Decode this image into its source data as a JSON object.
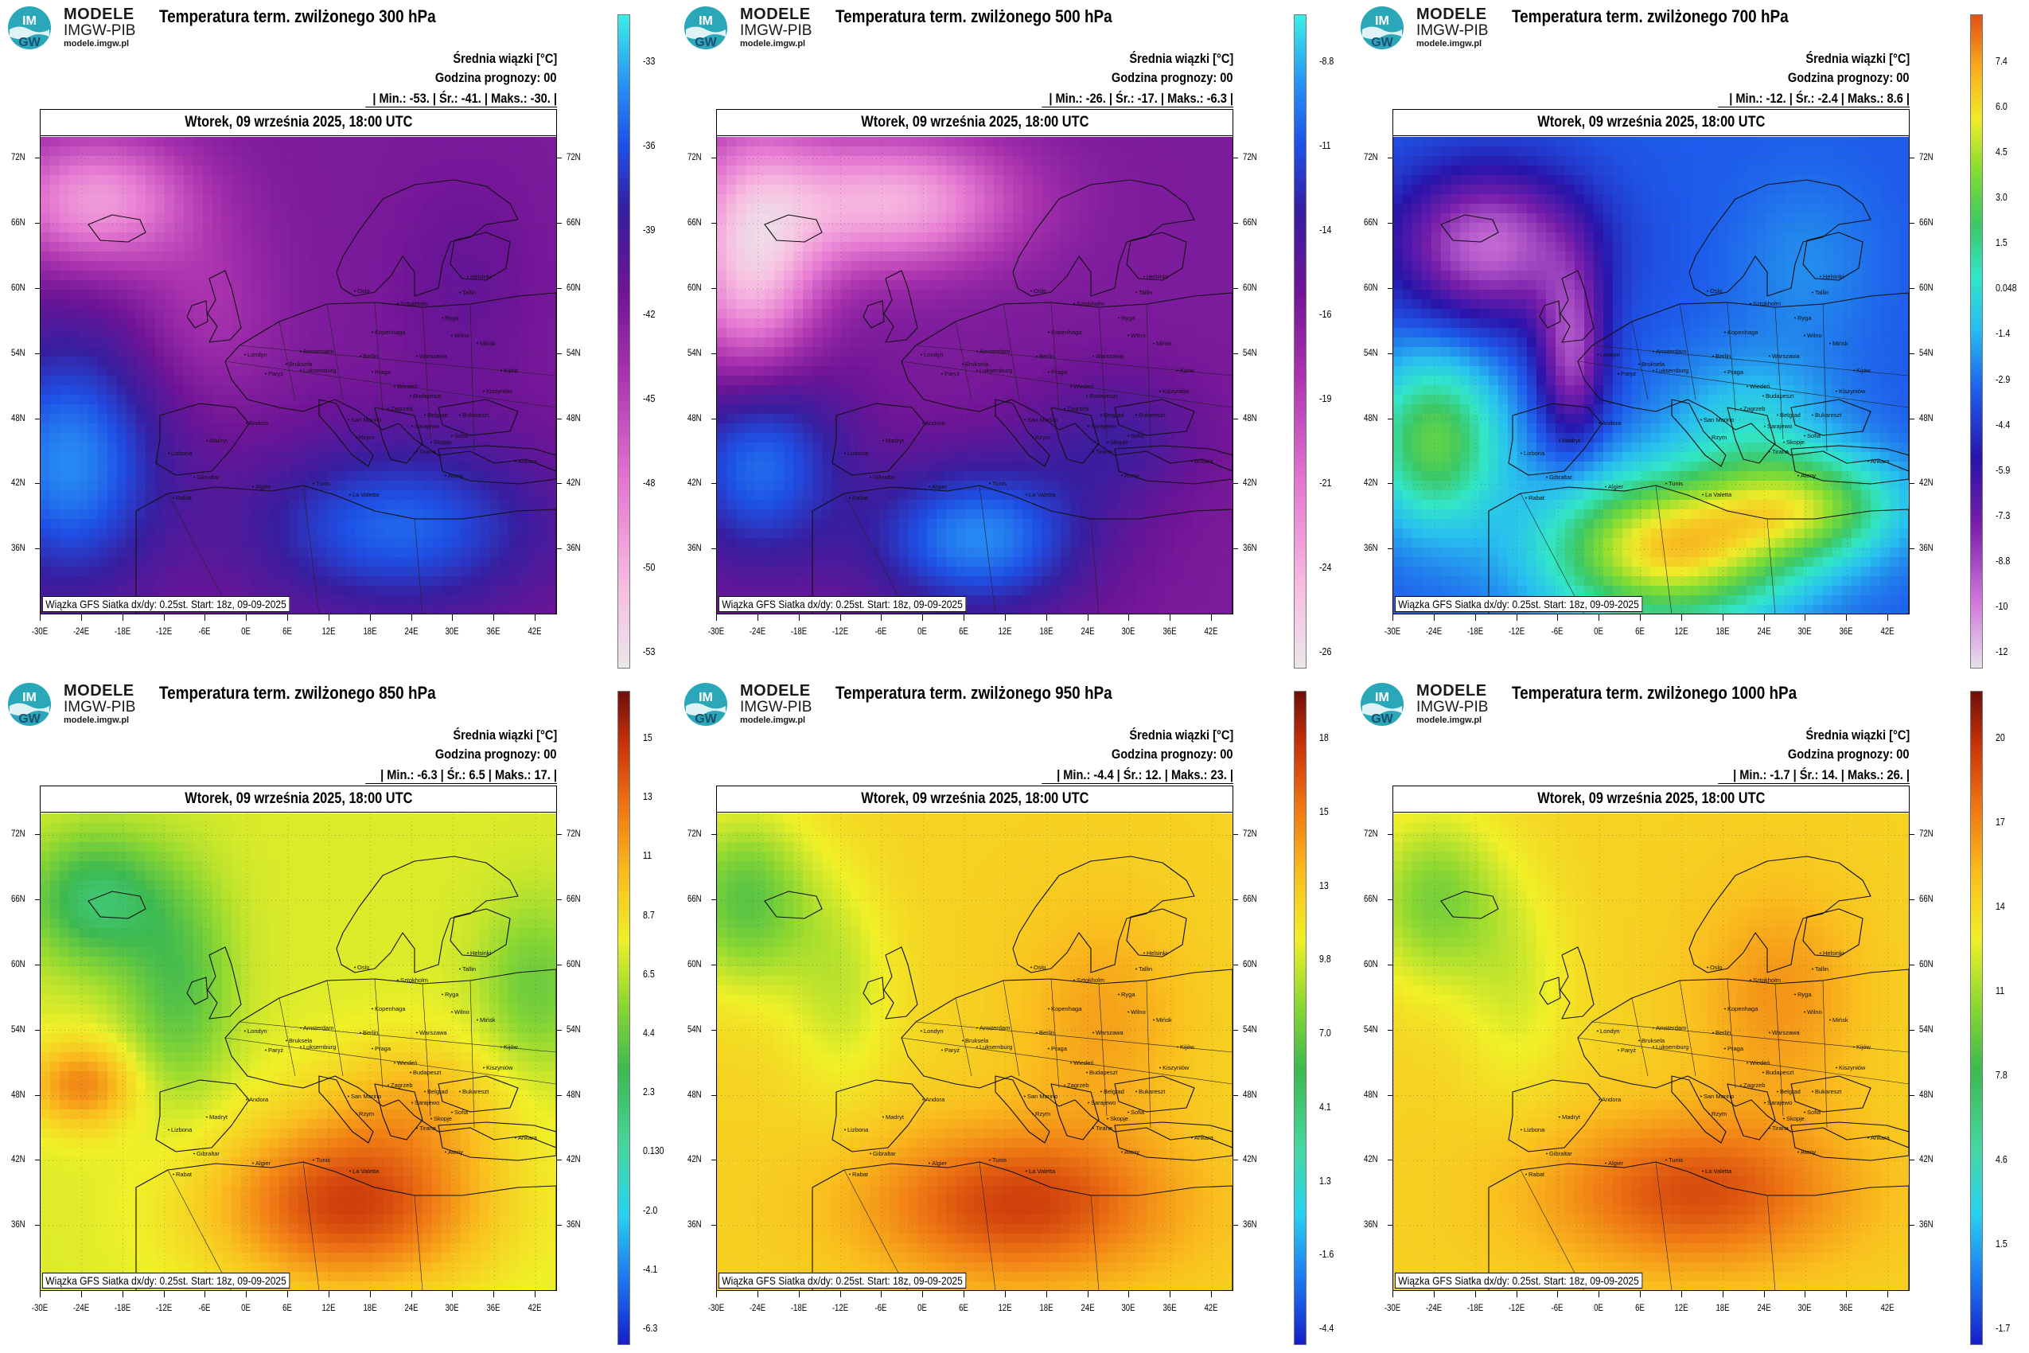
{
  "logo": {
    "line1": "MODELE",
    "line2": "IMGW-PIB",
    "line3": "modele.imgw.pl",
    "badge_top": "IM",
    "badge_bottom": "GW"
  },
  "labels": {
    "mean_label": "Średnia wiązki [°C]",
    "lead_label": "Godzina prognozy: 00",
    "date": "Wtorek, 09 września 2025, 18:00 UTC",
    "source": "Wiązka GFS Siatka dx/dy: 0.25st. Start: 18z, 09-09-2025"
  },
  "lat_ticks": [
    "72N",
    "66N",
    "60N",
    "54N",
    "48N",
    "42N",
    "36N"
  ],
  "lon_ticks": [
    "-30E",
    "-24E",
    "-18E",
    "-12E",
    "-6E",
    "0E",
    "6E",
    "12E",
    "18E",
    "24E",
    "30E",
    "36E",
    "42E"
  ],
  "city_labels": [
    "Helsinki",
    "Oslo",
    "Sztokholm",
    "Tallin",
    "Ryga",
    "Kopenhaga",
    "Wilno",
    "Mińsk",
    "Amsterdam",
    "Berlin",
    "Warszawa",
    "Kijów",
    "Londyn",
    "Bruksela",
    "Paryż",
    "Luksemburg",
    "Praga",
    "Wiedeń",
    "Budapeszt",
    "Kiszyniów",
    "Zagrzeb",
    "Belgrad",
    "Bukareszt",
    "San Marino",
    "Sarajewo",
    "Andora",
    "Madryt",
    "Rzym",
    "Sofia",
    "Skopje",
    "Tirana",
    "Lizbona",
    "Ateny",
    "Ankara",
    "Gibraltar",
    "Algier",
    "Tunis",
    "La Valetta",
    "Rabat"
  ],
  "panels": [
    {
      "id": "p300",
      "title": "Temperatura term. zwilżonego 300 hPa",
      "stats": "| Min.:   -53. | Śr.:   -41. | Maks.:   -30. |",
      "cbar_labels": [
        "-33",
        "-36",
        "-39",
        "-42",
        "-45",
        "-48",
        "-50",
        "-53"
      ],
      "palette": "cold",
      "field": "f300"
    },
    {
      "id": "p500",
      "title": "Temperatura term. zwilżonego 500 hPa",
      "stats": "| Min.:   -26. | Śr.:   -17. | Maks.:   -6.3 |",
      "cbar_labels": [
        "-8.8",
        "-11",
        "-14",
        "-16",
        "-19",
        "-21",
        "-24",
        "-26"
      ],
      "palette": "cold",
      "field": "f500"
    },
    {
      "id": "p700",
      "title": "Temperatura term. zwilżonego 700 hPa",
      "stats": "| Min.:   -12. | Śr.:   -2.4 | Maks.:   8.6 |",
      "cbar_labels": [
        "7.4",
        "6.0",
        "4.5",
        "3.0",
        "1.5",
        "0.048",
        "-1.4",
        "-2.9",
        "-4.4",
        "-5.9",
        "-7.3",
        "-8.8",
        "-10",
        "-12"
      ],
      "palette": "mixed",
      "field": "f700"
    },
    {
      "id": "p850",
      "title": "Temperatura term. zwilżonego 850 hPa",
      "stats": "| Min.:   -6.3 | Śr.:   6.5 | Maks.:   17. |",
      "cbar_labels": [
        "15",
        "13",
        "11",
        "8.7",
        "6.5",
        "4.4",
        "2.3",
        "0.130",
        "-2.0",
        "-4.1",
        "-6.3"
      ],
      "palette": "warm",
      "field": "f850"
    },
    {
      "id": "p950",
      "title": "Temperatura term. zwilżonego 950 hPa",
      "stats": "| Min.:   -4.4 | Śr.:   12. | Maks.:   23. |",
      "cbar_labels": [
        "18",
        "15",
        "13",
        "9.8",
        "7.0",
        "4.1",
        "1.3",
        "-1.6",
        "-4.4"
      ],
      "palette": "warm",
      "field": "f950"
    },
    {
      "id": "p1000",
      "title": "Temperatura term. zwilżonego 1000 hPa",
      "stats": "| Min.:   -1.7 | Śr.:   14. | Maks.:   26. |",
      "cbar_labels": [
        "20",
        "17",
        "14",
        "11",
        "7.8",
        "4.6",
        "1.5",
        "-1.7"
      ],
      "palette": "warm",
      "field": "f1000"
    }
  ]
}
